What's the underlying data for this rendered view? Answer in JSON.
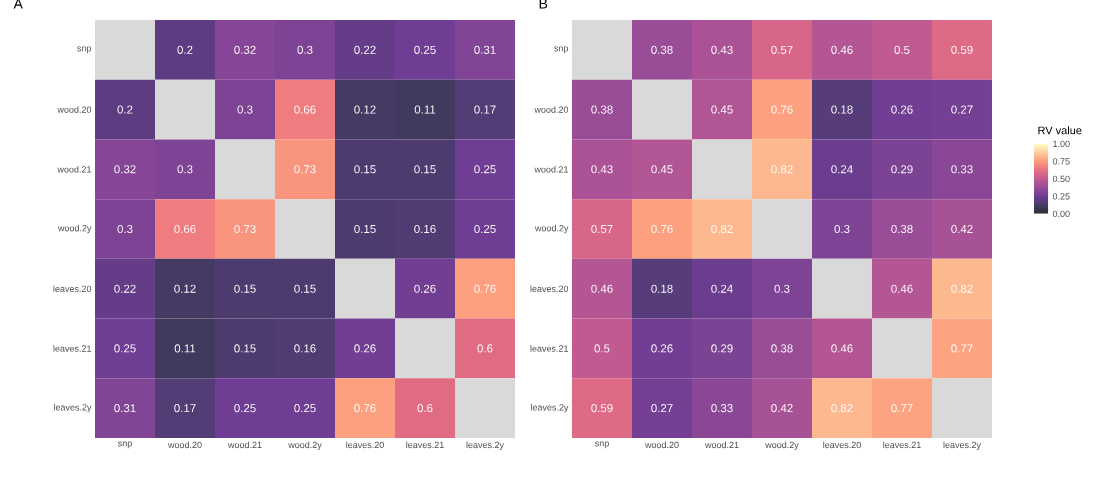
{
  "chart_data": [
    {
      "type": "heatmap",
      "title": "A",
      "categories": [
        "snp",
        "wood.20",
        "wood.21",
        "wood.2y",
        "leaves.20",
        "leaves.21",
        "leaves.2y"
      ],
      "y_categories": [
        "snp",
        "wood.20",
        "wood.21",
        "wood.2y",
        "leaves.20",
        "leaves.21",
        "leaves.2y"
      ],
      "data_labels": true,
      "cells": [
        [
          null,
          0.2,
          0.32,
          0.3,
          0.22,
          0.25,
          0.31
        ],
        [
          0.2,
          null,
          0.3,
          0.66,
          0.12,
          0.11,
          0.17
        ],
        [
          0.32,
          0.3,
          null,
          0.73,
          0.15,
          0.15,
          0.25
        ],
        [
          0.3,
          0.66,
          0.73,
          null,
          0.15,
          0.16,
          0.25
        ],
        [
          0.22,
          0.12,
          0.15,
          0.15,
          null,
          0.26,
          0.76
        ],
        [
          0.25,
          0.11,
          0.15,
          0.16,
          0.26,
          null,
          0.6
        ],
        [
          0.31,
          0.17,
          0.25,
          0.25,
          0.76,
          0.6,
          null
        ]
      ]
    },
    {
      "type": "heatmap",
      "title": "B",
      "categories": [
        "snp",
        "wood.20",
        "wood.21",
        "wood.2y",
        "leaves.20",
        "leaves.21",
        "leaves.2y"
      ],
      "y_categories": [
        "snp",
        "wood.20",
        "wood.21",
        "wood.2y",
        "leaves.20",
        "leaves.21",
        "leaves.2y"
      ],
      "data_labels": true,
      "clabel": "RV value",
      "clim": [
        0,
        1
      ],
      "cticks": [
        {
          "value": 0,
          "label": "0.00"
        },
        {
          "value": 0.25,
          "label": "0.25"
        },
        {
          "value": 0.5,
          "label": "0.50"
        },
        {
          "value": 0.75,
          "label": "0.75"
        },
        {
          "value": 1,
          "label": "1.00"
        }
      ],
      "cells": [
        [
          null,
          0.38,
          0.43,
          0.57,
          0.46,
          0.5,
          0.59
        ],
        [
          0.38,
          null,
          0.45,
          0.76,
          0.18,
          0.26,
          0.27
        ],
        [
          0.43,
          0.45,
          null,
          0.82,
          0.24,
          0.29,
          0.33
        ],
        [
          0.57,
          0.76,
          0.82,
          null,
          0.3,
          0.38,
          0.42
        ],
        [
          0.46,
          0.18,
          0.24,
          0.3,
          null,
          0.46,
          0.82
        ],
        [
          0.5,
          0.26,
          0.29,
          0.38,
          0.46,
          null,
          0.77
        ],
        [
          0.59,
          0.27,
          0.33,
          0.42,
          0.82,
          0.77,
          null
        ]
      ]
    }
  ]
}
